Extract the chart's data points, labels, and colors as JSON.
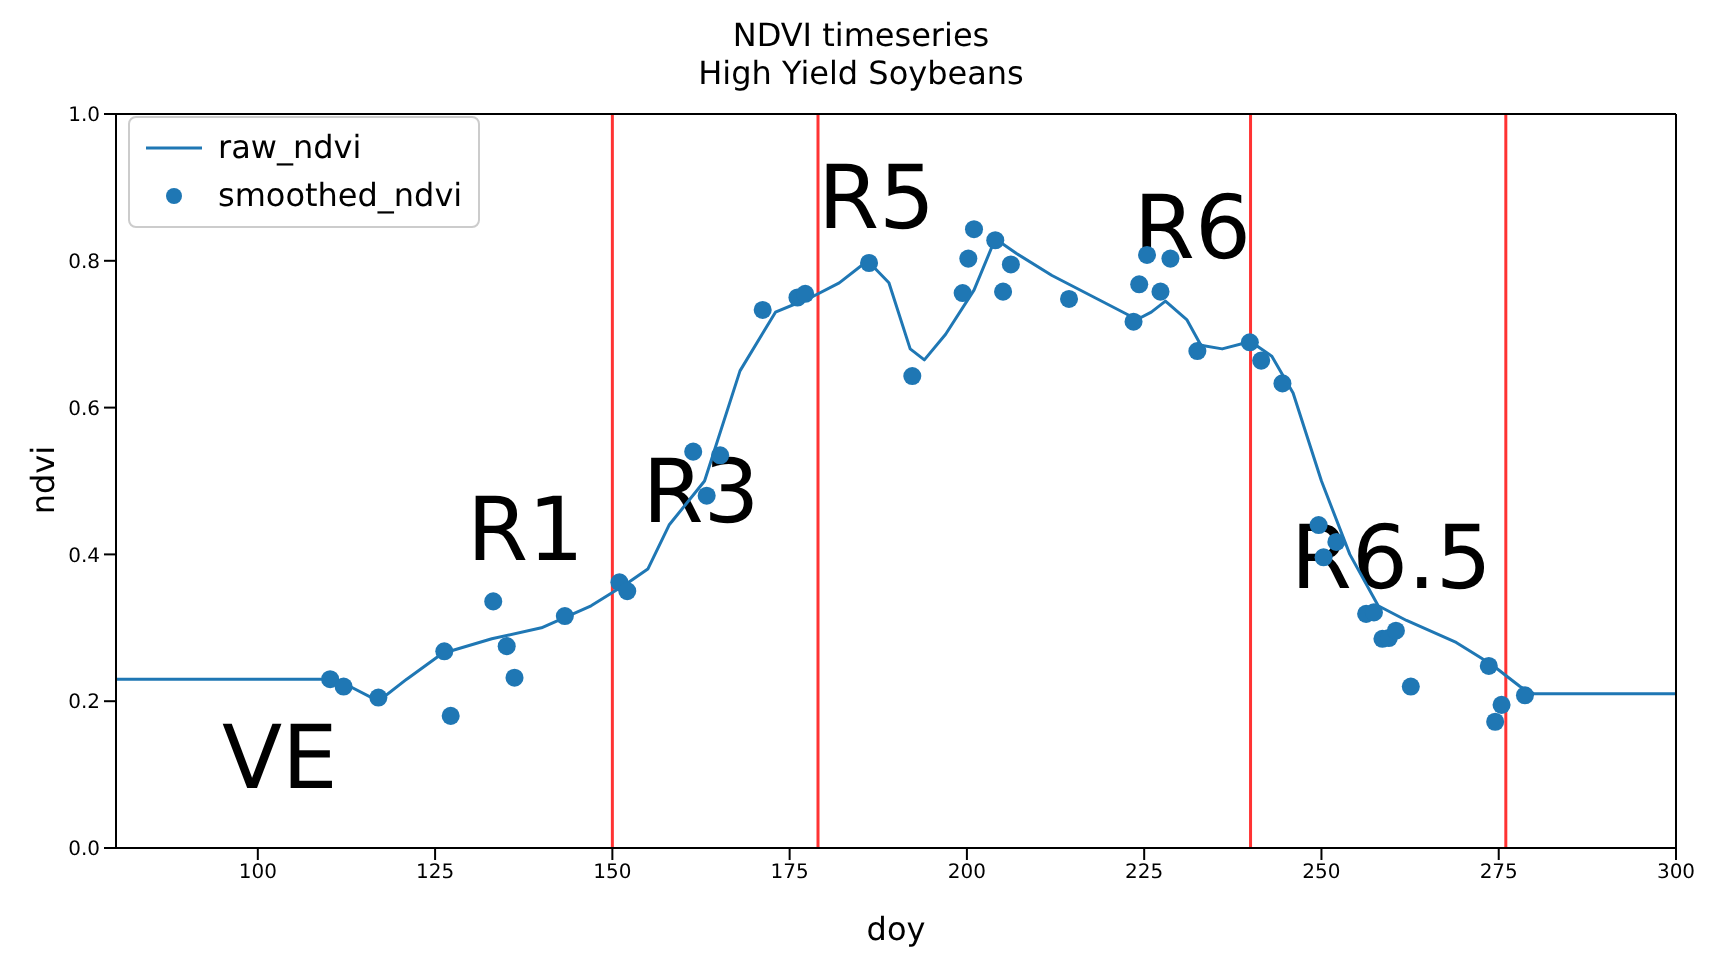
{
  "chart_data": {
    "type": "line",
    "title": "NDVI timeseries",
    "subtitle": "High Yield Soybeans",
    "xlabel": "doy",
    "ylabel": "ndvi",
    "xlim": [
      80,
      300
    ],
    "xticks": [
      100,
      125,
      150,
      175,
      200,
      225,
      250,
      275,
      300
    ],
    "ylim": [
      0,
      1
    ],
    "yticks": [
      {
        "value": 0,
        "label": "0.0"
      },
      {
        "value": 0.2,
        "label": "0.2"
      },
      {
        "value": 0.4,
        "label": "0.4"
      },
      {
        "value": 0.6,
        "label": "0.6"
      },
      {
        "value": 0.8,
        "label": "0.8"
      },
      {
        "value": 1,
        "label": "1.0"
      }
    ],
    "grid": false,
    "legend": "top left",
    "series": [
      {
        "name": "raw_ndvi",
        "color": "#1f77b4",
        "line_style": "solid",
        "marker": "none",
        "x": [
          80,
          110,
          113,
          117,
          121,
          126,
          133,
          140,
          147,
          152,
          155,
          158,
          163,
          168,
          173,
          178,
          182,
          186,
          189,
          192,
          194,
          197,
          201,
          204,
          207,
          212,
          218,
          224,
          226,
          228,
          231,
          233,
          236,
          240,
          243,
          246,
          250,
          254,
          258,
          262,
          269,
          274,
          278,
          280,
          300
        ],
        "values": [
          0.23,
          0.23,
          0.22,
          0.2,
          0.23,
          0.265,
          0.285,
          0.3,
          0.33,
          0.36,
          0.38,
          0.44,
          0.5,
          0.65,
          0.73,
          0.75,
          0.77,
          0.8,
          0.77,
          0.68,
          0.665,
          0.7,
          0.76,
          0.83,
          0.81,
          0.78,
          0.75,
          0.72,
          0.73,
          0.745,
          0.72,
          0.685,
          0.68,
          0.69,
          0.67,
          0.62,
          0.5,
          0.4,
          0.33,
          0.31,
          0.28,
          0.25,
          0.22,
          0.21,
          0.21
        ]
      },
      {
        "name": "smoothed_ndvi",
        "type": "scatter",
        "color": "#1f77b4",
        "marker": "circle",
        "x": [
          110.2,
          112.1,
          117.0,
          126.3,
          127.2,
          133.2,
          135.1,
          136.2,
          143.3,
          151.0,
          152.1,
          161.4,
          163.3,
          165.2,
          171.2,
          176.1,
          177.2,
          186.2,
          192.3,
          199.4,
          200.2,
          201.0,
          204.0,
          205.1,
          206.2,
          214.4,
          223.5,
          224.3,
          225.4,
          227.3,
          228.7,
          232.5,
          239.9,
          241.5,
          244.5,
          249.6,
          252.1,
          250.3,
          256.3,
          257.4,
          258.6,
          259.5,
          260.5,
          262.6,
          273.6,
          275.4,
          274.5,
          278.7
        ],
        "values": [
          0.23,
          0.22,
          0.205,
          0.268,
          0.18,
          0.336,
          0.275,
          0.232,
          0.316,
          0.362,
          0.35,
          0.54,
          0.48,
          0.535,
          0.733,
          0.75,
          0.755,
          0.797,
          0.643,
          0.756,
          0.803,
          0.843,
          0.828,
          0.758,
          0.795,
          0.748,
          0.717,
          0.768,
          0.808,
          0.758,
          0.803,
          0.677,
          0.689,
          0.664,
          0.633,
          0.44,
          0.417,
          0.396,
          0.319,
          0.321,
          0.285,
          0.286,
          0.296,
          0.22,
          0.248,
          0.195,
          0.172,
          0.208
        ]
      }
    ],
    "ref_lines": [
      {
        "axis": "x",
        "value": 150,
        "color": "#ff3333"
      },
      {
        "axis": "x",
        "value": 179,
        "color": "#ff3333"
      },
      {
        "axis": "x",
        "value": 240,
        "color": "#ff3333"
      },
      {
        "axis": "x",
        "value": 276,
        "color": "#ff3333"
      }
    ],
    "annotations": [
      "VE",
      "R1",
      "R3",
      "R5",
      "R6",
      "R6.5"
    ]
  }
}
